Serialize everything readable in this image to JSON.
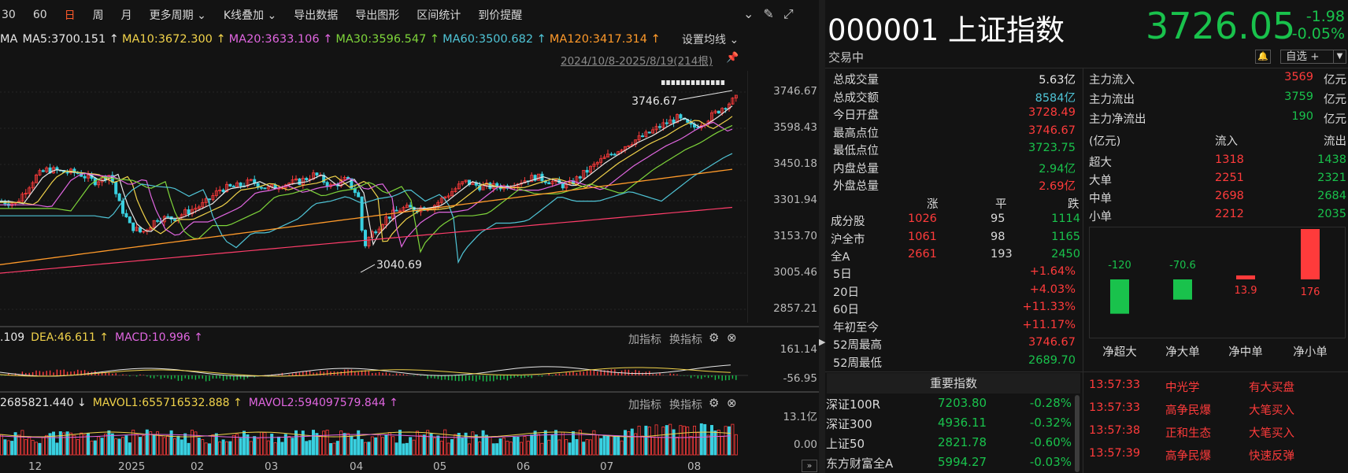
{
  "toolbar": {
    "items": [
      "30",
      "60",
      "日",
      "周",
      "月",
      "更多周期",
      "K线叠加",
      "导出数据",
      "导出图形",
      "区间统计",
      "到价提醒"
    ],
    "active_index": 2
  },
  "ma_line": {
    "prefix": "MA",
    "items": [
      {
        "text": "MA5:3700.151 ↑",
        "color": "#e6e6e6"
      },
      {
        "text": "MA10:3672.300 ↑",
        "color": "#f0d24a"
      },
      {
        "text": "MA20:3633.106 ↑",
        "color": "#e066e0"
      },
      {
        "text": "MA30:3596.547 ↑",
        "color": "#7ed43a"
      },
      {
        "text": "MA60:3500.682 ↑",
        "color": "#4fc4d6"
      },
      {
        "text": "MA120:3417.314 ↑",
        "color": "#ff9a2a"
      }
    ],
    "settings_label": "设置均线 ⌄"
  },
  "range_label": "2024/10/8-2025/8/19(214根)",
  "price_axis": [
    "3746.67",
    "3598.43",
    "3450.18",
    "3301.94",
    "3153.70",
    "3005.46",
    "2857.21"
  ],
  "annotations": {
    "high": "3746.67",
    "low": "3040.69"
  },
  "macd": {
    "items": [
      {
        "text": ".109",
        "color": "#e6e6e6"
      },
      {
        "text": "DEA:46.611 ↑",
        "color": "#f0d24a"
      },
      {
        "text": "MACD:10.996 ↑",
        "color": "#e066e0"
      }
    ],
    "axis": [
      "161.14",
      "-56.95"
    ]
  },
  "volume": {
    "items": [
      {
        "text": "2685821.440 ↓",
        "color": "#e6e6e6"
      },
      {
        "text": "MAVOL1:655716532.888 ↑",
        "color": "#f0d24a"
      },
      {
        "text": "MAVOL2:594097579.844 ↑",
        "color": "#e066e0"
      }
    ],
    "axis": [
      "13.1亿",
      "0.00"
    ]
  },
  "indicator_buttons": {
    "add": "加指标",
    "switch": "换指标"
  },
  "x_axis": [
    "12",
    "2025",
    "02",
    "03",
    "04",
    "05",
    "06",
    "07",
    "08"
  ],
  "stock": {
    "code_name": "000001 上证指数",
    "price": "3726.05",
    "change": "-1.98",
    "change_pct": "-0.05%",
    "status": "交易中",
    "fav_label": "自选 +"
  },
  "stats": [
    {
      "label": "总成交量",
      "value": "5.63亿",
      "color": "#e6e6e6"
    },
    {
      "label": "总成交额",
      "value": "8584亿",
      "color": "#4fc4d6"
    },
    {
      "label": "今日开盘",
      "value": "3728.49",
      "color": "#ff3b3b"
    },
    {
      "label": "最高点位",
      "value": "3746.67",
      "color": "#ff3b3b"
    },
    {
      "label": "最低点位",
      "value": "3723.75",
      "color": "#19c24c"
    },
    {
      "label": "内盘总量",
      "value": "2.94亿",
      "color": "#19c24c"
    },
    {
      "label": "外盘总量",
      "value": "2.69亿",
      "color": "#ff3b3b"
    }
  ],
  "breadth": {
    "headers": [
      "涨",
      "平",
      "跌"
    ],
    "rows": [
      {
        "label": "成分股",
        "up": "1026",
        "flat": "95",
        "down": "1114"
      },
      {
        "label": "沪全市",
        "up": "1061",
        "flat": "98",
        "down": "1165"
      },
      {
        "label": "全A",
        "up": "2661",
        "flat": "193",
        "down": "2450"
      }
    ]
  },
  "periods": [
    {
      "label": "5日",
      "value": "+1.64%"
    },
    {
      "label": "20日",
      "value": "+4.03%"
    },
    {
      "label": "60日",
      "value": "+11.33%"
    },
    {
      "label": "年初至今",
      "value": "+11.17%"
    },
    {
      "label": "52周最高",
      "value": "3746.67",
      "color": "#ff3b3b"
    },
    {
      "label": "52周最低",
      "value": "2689.70",
      "color": "#19c24c"
    }
  ],
  "important_header": "重要指数",
  "indices": [
    {
      "name": "深证100R",
      "price": "7203.80",
      "pct": "-0.28%"
    },
    {
      "name": "深证300",
      "price": "4936.11",
      "pct": "-0.32%"
    },
    {
      "name": "上证50",
      "price": "2821.78",
      "pct": "-0.60%"
    },
    {
      "name": "东方财富全A",
      "price": "5994.27",
      "pct": "-0.03%"
    }
  ],
  "capital": {
    "rows": [
      {
        "label": "主力流入",
        "value": "3569",
        "unit": "亿元",
        "color": "#ff3b3b"
      },
      {
        "label": "主力流出",
        "value": "3759",
        "unit": "亿元",
        "color": "#19c24c"
      },
      {
        "label": "主力净流出",
        "value": "190",
        "unit": "亿元",
        "color": "#19c24c"
      }
    ],
    "table_headers": [
      "(亿元)",
      "流入",
      "流出"
    ],
    "table": [
      {
        "label": "超大",
        "in": "1318",
        "out": "1438"
      },
      {
        "label": "大单",
        "in": "2251",
        "out": "2321"
      },
      {
        "label": "中单",
        "in": "2698",
        "out": "2684"
      },
      {
        "label": "小单",
        "in": "2212",
        "out": "2035"
      }
    ]
  },
  "chart_data": {
    "type": "bar",
    "categories": [
      "净超大",
      "净大单",
      "净中单",
      "净小单"
    ],
    "values": [
      -120,
      -70.6,
      13.9,
      176
    ],
    "labels": [
      "-120",
      "-70.6",
      "13.9",
      "176"
    ]
  },
  "ticks": [
    {
      "time": "13:57:33",
      "name": "中光学",
      "event": "有大买盘"
    },
    {
      "time": "13:57:33",
      "name": "高争民爆",
      "event": "大笔买入"
    },
    {
      "time": "13:57:38",
      "name": "正和生态",
      "event": "大笔买入"
    },
    {
      "time": "13:57:39",
      "name": "高争民爆",
      "event": "快速反弹"
    }
  ]
}
